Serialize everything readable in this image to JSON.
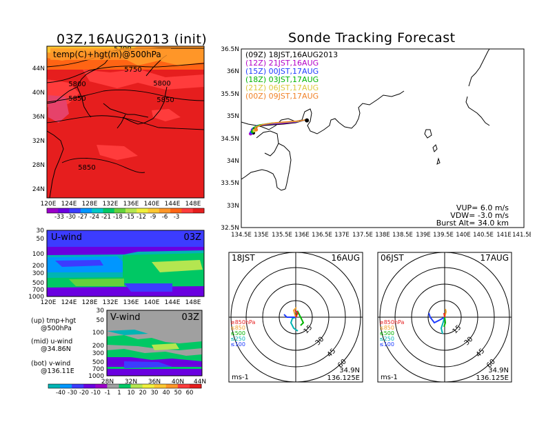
{
  "titles": {
    "left": "03Z,16AUG2013 (init)",
    "right": "Sonde Tracking Forecast"
  },
  "upper_map": {
    "label": "temp(C)+hgt(m)@500hPa",
    "lat_ticks": [
      "44N",
      "40N",
      "36N",
      "32N",
      "28N",
      "24N"
    ],
    "lon_ticks": [
      "120E",
      "124E",
      "128E",
      "132E",
      "136E",
      "140E",
      "144E",
      "148E"
    ],
    "contour_labels": [
      "5700",
      "5750",
      "5800",
      "5800",
      "5850",
      "5850",
      "5850"
    ],
    "colorbar_ticks": [
      "-33",
      "-30",
      "-27",
      "-24",
      "-21",
      "-18",
      "-15",
      "-12",
      "-9",
      "-6",
      "-3"
    ],
    "colorbar_colors": [
      "#9a00c8",
      "#6a00e0",
      "#3c3cff",
      "#0096ff",
      "#00c8c8",
      "#00c864",
      "#64d23c",
      "#b4e650",
      "#f0f03c",
      "#ffc832",
      "#ff9628",
      "#ff6414",
      "#ff3c3c",
      "#e61e1e"
    ]
  },
  "u_wind": {
    "label": "U-wind",
    "time": "03Z",
    "y_ticks": [
      "30",
      "50",
      "100",
      "200",
      "300",
      "500",
      "700",
      "1000"
    ],
    "x_ticks": [
      "120E",
      "124E",
      "128E",
      "132E",
      "136E",
      "140E",
      "144E",
      "148E"
    ]
  },
  "v_wind": {
    "label": "V-wind",
    "time": "03Z",
    "y_ticks": [
      "30",
      "50",
      "100",
      "200",
      "300",
      "500",
      "700",
      "1000"
    ],
    "x_ticks": [
      "28N",
      "32N",
      "36N",
      "40N",
      "44N"
    ]
  },
  "legend_notes": [
    {
      "a": "(up) tmp+hgt",
      "b": "@500hPa"
    },
    {
      "a": "(mid) u-wind",
      "b": "@34.86N"
    },
    {
      "a": "(bot) v-wind",
      "b": "@136.11E"
    }
  ],
  "wind_colorbar": {
    "ticks": [
      "-40",
      "-30",
      "-20",
      "-10",
      "-1",
      "1",
      "10",
      "20",
      "30",
      "40",
      "50",
      "60"
    ],
    "colors": [
      "#00b4b4",
      "#0096ff",
      "#3c3cff",
      "#6a00e0",
      "#9a00c8",
      "#a0a0a0",
      "#00c864",
      "#b4e650",
      "#f0f03c",
      "#ffc832",
      "#ff9628",
      "#ff3c3c",
      "#e61e1e"
    ]
  },
  "track_map": {
    "legend": [
      {
        "text": "(09Z) 18JST,16AUG2013",
        "color": "#000000"
      },
      {
        "text": "(12Z) 21JST,16AUG",
        "color": "#b400c8"
      },
      {
        "text": "(15Z) 00JST,17AUG",
        "color": "#1e3cff"
      },
      {
        "text": "(18Z) 03JST,17AUG",
        "color": "#00b400"
      },
      {
        "text": "(21Z) 06JST,17AUG",
        "color": "#dcc83c"
      },
      {
        "text": "(00Z) 09JST,17AUG",
        "color": "#f08228"
      }
    ],
    "lat_ticks": [
      "36.5N",
      "36N",
      "35.5N",
      "35N",
      "34.5N",
      "34N",
      "33.5N",
      "33N",
      "32.5N"
    ],
    "lon_ticks": [
      "134.5E",
      "135E",
      "135.5E",
      "136E",
      "136.5E",
      "137E",
      "137.5E",
      "138E",
      "138.5E",
      "139E",
      "139.5E",
      "140E",
      "140.5E",
      "141E",
      "141.5E"
    ],
    "vup": "VUP=  6.0  m/s",
    "vdw": "VDW= -3.0  m/s",
    "burst": "Burst Alt= 34.0  km"
  },
  "hodo_left": {
    "time": "18JST",
    "date": "16AUG",
    "pressure_legend": [
      {
        "text": "≥850hPa",
        "color": "#e61e1e"
      },
      {
        "text": "≤850",
        "color": "#f0a028"
      },
      {
        "text": "≤500",
        "color": "#00b400"
      },
      {
        "text": "≤250",
        "color": "#00b4b4"
      },
      {
        "text": "≤100",
        "color": "#1e3cff"
      }
    ],
    "rings": [
      "15",
      "30",
      "45",
      "60"
    ],
    "unit": "ms-1",
    "lat": "34.9N",
    "lon": "136.125E"
  },
  "hodo_right": {
    "time": "06JST",
    "date": "17AUG",
    "pressure_legend": [
      {
        "text": "≥850hPa",
        "color": "#e61e1e"
      },
      {
        "text": "≤850",
        "color": "#f0a028"
      },
      {
        "text": "≤500",
        "color": "#00b400"
      },
      {
        "text": "≤250",
        "color": "#00b4b4"
      },
      {
        "text": "≤100",
        "color": "#1e3cff"
      }
    ],
    "rings": [
      "15",
      "30",
      "45",
      "60"
    ],
    "unit": "ms-1",
    "lat": "34.9N",
    "lon": "136.125E"
  },
  "chart_data": [
    {
      "type": "heatmap",
      "title": "03Z,16AUG2013 (init)",
      "subtitle": "temp(C)+hgt(m)@500hPa",
      "x_range": [
        120,
        150
      ],
      "y_range": [
        22,
        47
      ],
      "contours_m": [
        5700,
        5750,
        5800,
        5850
      ]
    },
    {
      "type": "heatmap",
      "title": "U-wind",
      "x_range": [
        120,
        150
      ],
      "y_range": [
        1000,
        30
      ]
    },
    {
      "type": "heatmap",
      "title": "V-wind",
      "x_range": [
        28,
        44
      ],
      "y_range": [
        1000,
        30
      ]
    },
    {
      "type": "line",
      "title": "Sonde Tracking Forecast",
      "xlim": [
        134.5,
        141.5
      ],
      "ylim": [
        32.5,
        36.5
      ],
      "launch": {
        "lon": 136.125,
        "lat": 34.9
      },
      "series": [
        {
          "name": "(09Z) 18JST,16AUG2013",
          "x": [
            136.12,
            135.85,
            135.55,
            135.25,
            134.95,
            134.82,
            134.8
          ],
          "y": [
            34.92,
            34.85,
            34.82,
            34.8,
            34.78,
            34.72,
            34.62
          ]
        },
        {
          "name": "(12Z) 21JST,16AUG",
          "x": [
            136.12,
            135.85,
            135.5,
            135.15,
            134.88,
            134.75,
            134.73
          ],
          "y": [
            34.92,
            34.86,
            34.83,
            34.81,
            34.78,
            34.7,
            34.6
          ]
        },
        {
          "name": "(15Z) 00JST,17AUG",
          "x": [
            136.12,
            135.88,
            135.55,
            135.2,
            134.9,
            134.77,
            134.75
          ],
          "y": [
            34.92,
            34.87,
            34.85,
            34.82,
            34.79,
            34.72,
            34.63
          ]
        },
        {
          "name": "(18Z) 03JST,17AUG",
          "x": [
            136.12,
            135.9,
            135.6,
            135.25,
            134.95,
            134.8,
            134.78
          ],
          "y": [
            34.92,
            34.88,
            34.86,
            34.84,
            34.8,
            34.74,
            34.65
          ]
        },
        {
          "name": "(21Z) 06JST,17AUG",
          "x": [
            136.12,
            135.92,
            135.62,
            135.3,
            135.0,
            134.85,
            134.82
          ],
          "y": [
            34.92,
            34.88,
            34.86,
            34.84,
            34.8,
            34.75,
            34.67
          ]
        },
        {
          "name": "(00Z) 09JST,17AUG",
          "x": [
            136.12,
            135.95,
            135.65,
            135.35,
            135.05,
            134.9,
            134.87
          ],
          "y": [
            34.92,
            34.89,
            34.87,
            34.85,
            34.81,
            34.76,
            34.69
          ]
        }
      ]
    }
  ]
}
